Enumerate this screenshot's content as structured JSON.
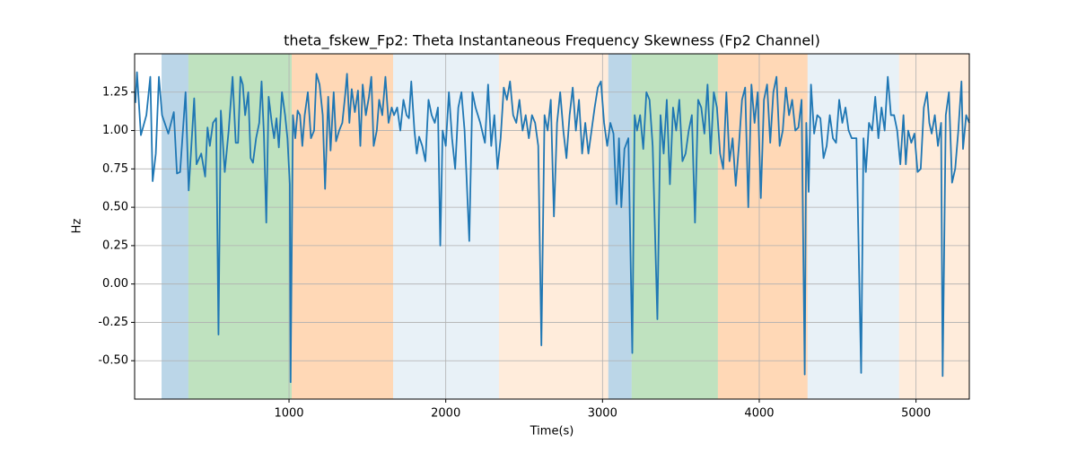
{
  "chart_data": {
    "type": "line",
    "title": "theta_fskew_Fp2: Theta Instantaneous Frequency Skewness (Fp2 Channel)",
    "x_label": "Time(s)",
    "y_label": "Hz",
    "xlim": [
      15,
      5340
    ],
    "ylim": [
      -0.75,
      1.5
    ],
    "xticks": [
      1000,
      2000,
      3000,
      4000,
      5000
    ],
    "yticks": [
      {
        "value": -0.5,
        "label": "-0.50"
      },
      -0.25,
      {
        "value": 0,
        "label": "0.00"
      },
      0.25,
      {
        "value": 0.5,
        "label": "0.50"
      },
      0.75,
      {
        "value": 1,
        "label": "1.00"
      },
      1.25
    ],
    "grid": true,
    "spans": [
      {
        "x0": 187,
        "x1": 358,
        "color": "#1f77b4",
        "alpha": 0.3
      },
      {
        "x0": 358,
        "x1": 1017,
        "color": "#2ca02c",
        "alpha": 0.3
      },
      {
        "x0": 1017,
        "x1": 1664,
        "color": "#ff7f0e",
        "alpha": 0.3
      },
      {
        "x0": 1664,
        "x1": 2339,
        "color": "#1f77b4",
        "alpha": 0.1
      },
      {
        "x0": 2339,
        "x1": 3037,
        "color": "#ff7f0e",
        "alpha": 0.15
      },
      {
        "x0": 3037,
        "x1": 3186,
        "color": "#1f77b4",
        "alpha": 0.3
      },
      {
        "x0": 3186,
        "x1": 3736,
        "color": "#2ca02c",
        "alpha": 0.3
      },
      {
        "x0": 3736,
        "x1": 4308,
        "color": "#ff7f0e",
        "alpha": 0.3
      },
      {
        "x0": 4308,
        "x1": 4892,
        "color": "#1f77b4",
        "alpha": 0.1
      },
      {
        "x0": 4892,
        "x1": 5340,
        "color": "#ff7f0e",
        "alpha": 0.15
      }
    ],
    "color": "#1f77b4",
    "x": [
      20,
      30,
      55,
      90,
      115,
      130,
      150,
      170,
      190,
      230,
      265,
      285,
      305,
      340,
      360,
      395,
      410,
      440,
      465,
      480,
      495,
      515,
      535,
      550,
      565,
      590,
      615,
      640,
      660,
      675,
      690,
      705,
      720,
      740,
      755,
      770,
      790,
      810,
      825,
      840,
      855,
      870,
      890,
      905,
      920,
      935,
      955,
      975,
      990,
      1005,
      1010,
      1025,
      1040,
      1055,
      1070,
      1085,
      1100,
      1120,
      1140,
      1160,
      1175,
      1195,
      1215,
      1230,
      1250,
      1265,
      1285,
      1300,
      1320,
      1340,
      1360,
      1370,
      1385,
      1400,
      1420,
      1440,
      1455,
      1470,
      1490,
      1510,
      1525,
      1540,
      1560,
      1575,
      1595,
      1615,
      1635,
      1655,
      1670,
      1690,
      1710,
      1730,
      1750,
      1765,
      1780,
      1800,
      1815,
      1830,
      1850,
      1870,
      1890,
      1910,
      1930,
      1950,
      1965,
      1980,
      2000,
      2020,
      2040,
      2060,
      2080,
      2100,
      2120,
      2150,
      2170,
      2190,
      2220,
      2250,
      2270,
      2290,
      2310,
      2330,
      2350,
      2370,
      2390,
      2410,
      2430,
      2450,
      2470,
      2490,
      2510,
      2530,
      2550,
      2570,
      2590,
      2610,
      2630,
      2650,
      2670,
      2690,
      2710,
      2730,
      2750,
      2770,
      2790,
      2810,
      2830,
      2850,
      2870,
      2890,
      2910,
      2930,
      2950,
      2970,
      2990,
      3010,
      3030,
      3050,
      3070,
      3090,
      3105,
      3120,
      3140,
      3165,
      3190,
      3205,
      3220,
      3240,
      3260,
      3280,
      3300,
      3320,
      3350,
      3370,
      3390,
      3410,
      3430,
      3450,
      3470,
      3490,
      3510,
      3530,
      3550,
      3570,
      3590,
      3610,
      3630,
      3650,
      3670,
      3690,
      3710,
      3730,
      3750,
      3770,
      3790,
      3810,
      3830,
      3850,
      3870,
      3890,
      3910,
      3930,
      3950,
      3970,
      3990,
      4010,
      4030,
      4050,
      4070,
      4090,
      4110,
      4130,
      4150,
      4170,
      4190,
      4210,
      4230,
      4250,
      4270,
      4290,
      4300,
      4315,
      4330,
      4350,
      4370,
      4390,
      4410,
      4430,
      4450,
      4470,
      4490,
      4510,
      4530,
      4550,
      4570,
      4590,
      4620,
      4650,
      4665,
      4680,
      4700,
      4720,
      4740,
      4760,
      4780,
      4800,
      4820,
      4840,
      4860,
      4880,
      4900,
      4920,
      4935,
      4950,
      4970,
      4990,
      5010,
      5030,
      5050,
      5070,
      5085,
      5100,
      5120,
      5140,
      5160,
      5170,
      5190,
      5210,
      5230,
      5250,
      5270,
      5290,
      5300,
      5320,
      5340
    ],
    "values": [
      1.18,
      1.38,
      0.97,
      1.1,
      1.35,
      0.67,
      0.85,
      1.35,
      1.1,
      0.98,
      1.12,
      0.72,
      0.73,
      1.25,
      0.61,
      1.21,
      0.78,
      0.85,
      0.7,
      1.02,
      0.9,
      1.05,
      1.08,
      -0.33,
      1.13,
      0.73,
      1.0,
      1.35,
      0.92,
      0.92,
      1.35,
      1.3,
      1.1,
      1.25,
      0.82,
      0.79,
      0.95,
      1.05,
      1.32,
      0.97,
      0.4,
      1.22,
      1.05,
      0.95,
      1.08,
      0.89,
      1.25,
      1.1,
      0.95,
      0.65,
      -0.64,
      1.1,
      0.95,
      1.13,
      1.1,
      0.9,
      1.1,
      1.25,
      0.95,
      1.0,
      1.37,
      1.3,
      1.1,
      0.62,
      1.22,
      0.87,
      1.25,
      0.93,
      1.0,
      1.05,
      1.25,
      1.37,
      1.05,
      1.27,
      1.12,
      1.26,
      0.9,
      1.3,
      1.1,
      1.22,
      1.35,
      0.9,
      1.0,
      1.2,
      1.1,
      1.35,
      1.05,
      1.15,
      1.1,
      1.15,
      1.0,
      1.2,
      1.1,
      1.08,
      1.32,
      1.0,
      0.85,
      0.96,
      0.9,
      0.8,
      1.2,
      1.1,
      1.05,
      1.15,
      0.25,
      1.0,
      0.9,
      1.25,
      0.95,
      0.75,
      1.15,
      1.25,
      1.0,
      0.28,
      1.25,
      1.15,
      1.05,
      0.92,
      1.3,
      0.9,
      1.1,
      0.75,
      0.95,
      1.28,
      1.2,
      1.32,
      1.1,
      1.05,
      1.2,
      1.0,
      1.1,
      0.95,
      1.1,
      1.05,
      0.9,
      -0.4,
      1.1,
      1.0,
      1.2,
      0.44,
      1.05,
      1.25,
      1.0,
      0.82,
      1.1,
      1.28,
      1.0,
      1.2,
      0.85,
      1.05,
      0.85,
      1.0,
      1.15,
      1.28,
      1.32,
      1.05,
      0.9,
      1.05,
      0.98,
      0.52,
      0.95,
      0.5,
      0.88,
      0.95,
      -0.45,
      1.1,
      1.0,
      1.1,
      0.88,
      1.25,
      1.2,
      0.9,
      -0.23,
      1.1,
      0.85,
      1.2,
      0.65,
      1.15,
      1.0,
      1.2,
      0.8,
      0.85,
      1.0,
      1.1,
      0.4,
      1.2,
      1.15,
      0.98,
      1.3,
      0.85,
      1.25,
      1.15,
      0.85,
      0.75,
      1.25,
      0.8,
      0.95,
      0.64,
      0.9,
      1.2,
      1.28,
      0.5,
      1.3,
      1.05,
      1.25,
      0.56,
      1.2,
      1.3,
      0.92,
      1.25,
      1.35,
      0.9,
      1.0,
      1.28,
      1.1,
      1.2,
      1.0,
      1.02,
      1.2,
      -0.59,
      1.05,
      0.6,
      1.3,
      0.98,
      1.1,
      1.08,
      0.82,
      0.9,
      1.1,
      0.95,
      0.92,
      1.2,
      1.05,
      1.15,
      1.0,
      0.95,
      0.95,
      -0.58,
      0.95,
      0.73,
      1.05,
      1.0,
      1.22,
      0.95,
      1.15,
      1.0,
      1.35,
      1.1,
      1.1,
      1.0,
      0.78,
      1.1,
      0.78,
      1.0,
      0.92,
      0.98,
      0.73,
      0.75,
      1.15,
      1.25,
      1.05,
      0.98,
      1.1,
      0.9,
      1.05,
      -0.6,
      1.1,
      1.25,
      0.66,
      0.75,
      1.0,
      1.32,
      0.88,
      1.1,
      1.05
    ]
  }
}
